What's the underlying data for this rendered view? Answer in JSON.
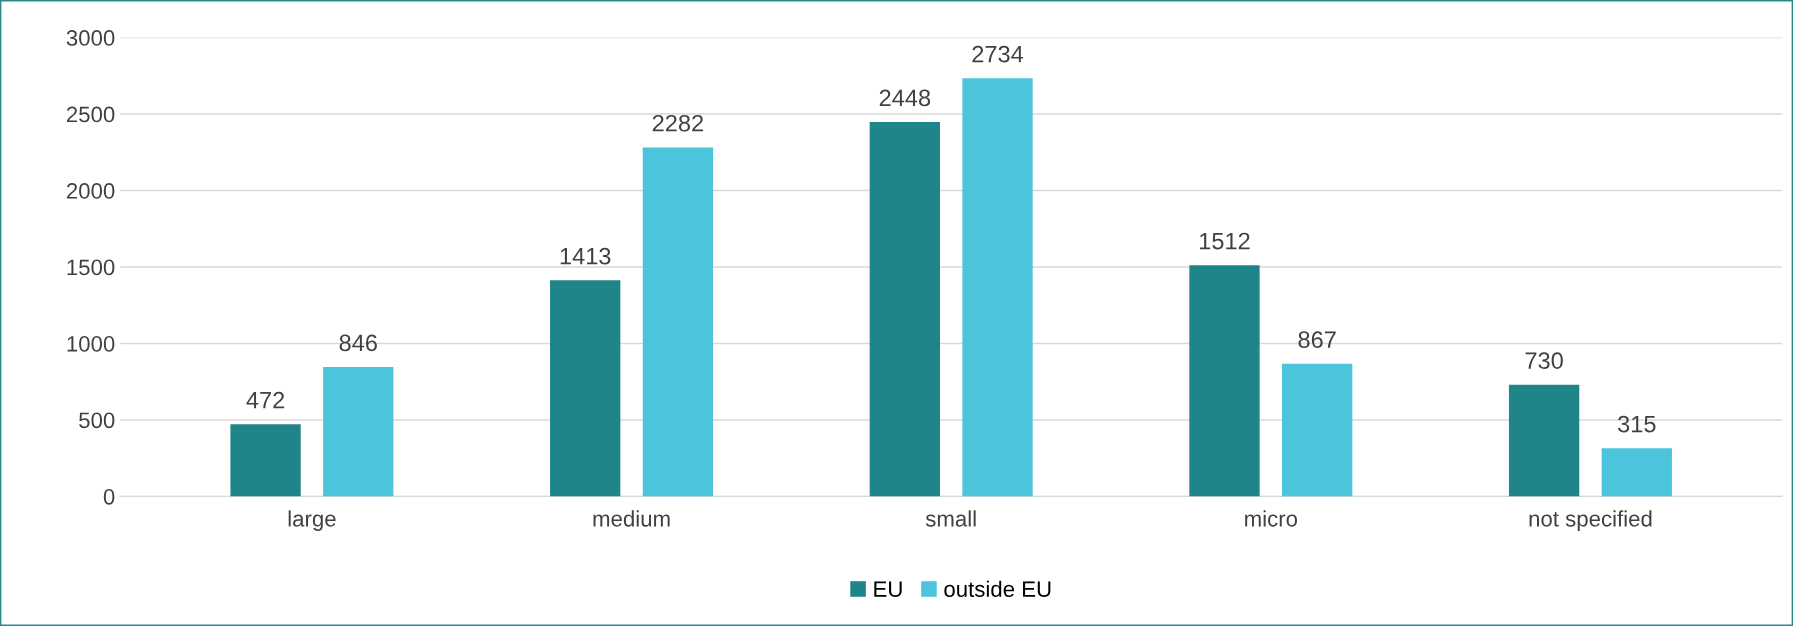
{
  "chart_data": {
    "type": "bar",
    "categories": [
      "large",
      "medium",
      "small",
      "micro",
      "not specified"
    ],
    "series": [
      {
        "name": "EU",
        "color": "#1f8589",
        "values": [
          472,
          1413,
          2448,
          1512,
          730
        ]
      },
      {
        "name": "outside EU",
        "color": "#4cc5dc",
        "values": [
          846,
          2282,
          2734,
          867,
          315
        ]
      }
    ],
    "ylim": [
      0,
      3000
    ],
    "yticks": [
      0,
      500,
      1000,
      1500,
      2000,
      2500,
      3000
    ],
    "grid": "y",
    "legend": "bottom",
    "data_labels": true
  }
}
